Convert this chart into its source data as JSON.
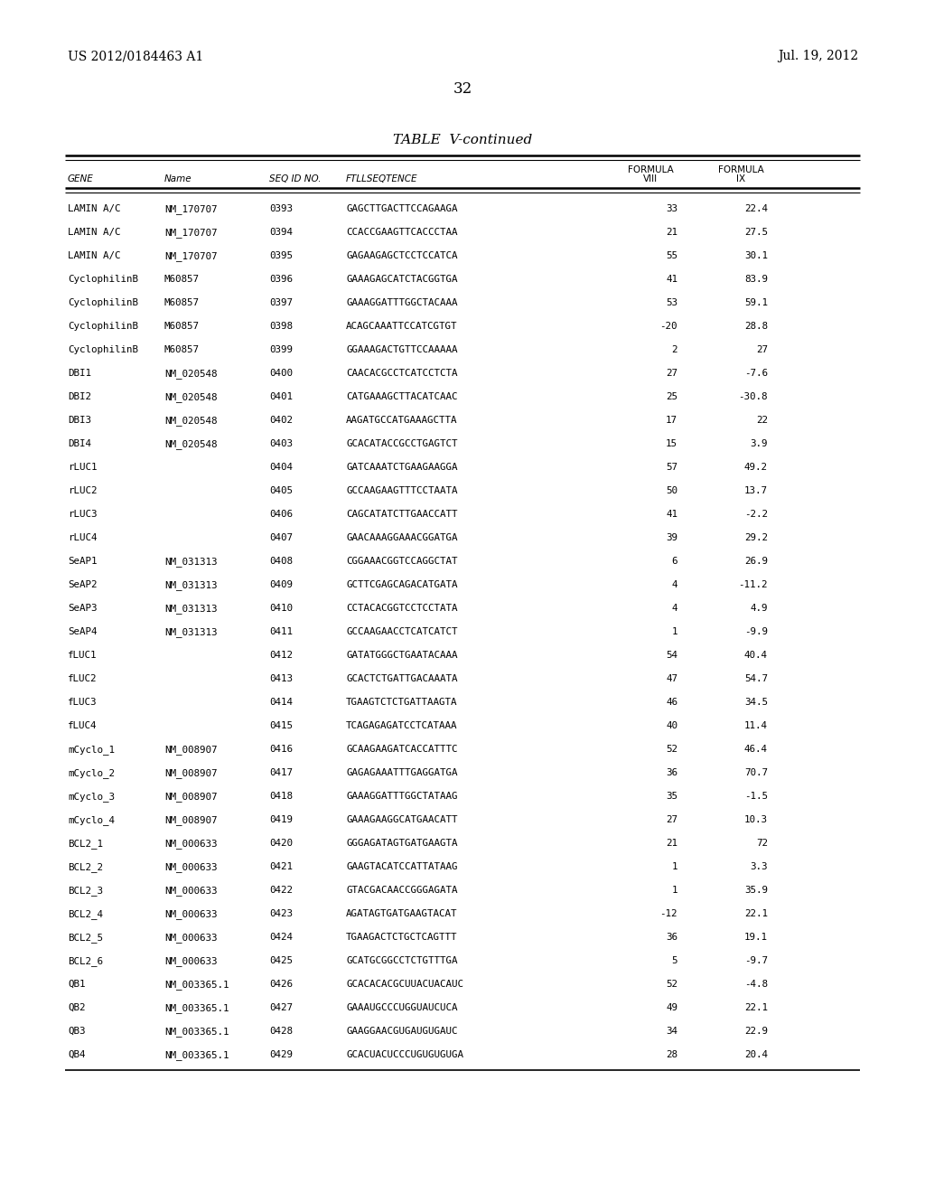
{
  "header_left": "US 2012/0184463 A1",
  "header_right": "Jul. 19, 2012",
  "page_number": "32",
  "table_title": "TABLE  V-continued",
  "rows": [
    [
      "LAMIN A/C",
      "NM_170707",
      "0393",
      "GAGCTTGACTTCCAGAAGA",
      "33",
      "22.4"
    ],
    [
      "LAMIN A/C",
      "NM_170707",
      "0394",
      "CCACCGAAGTTCACCCTAA",
      "21",
      "27.5"
    ],
    [
      "LAMIN A/C",
      "NM_170707",
      "0395",
      "GAGAAGAGCTCCTCCATCA",
      "55",
      "30.1"
    ],
    [
      "CyclophilinB",
      "M60857",
      "0396",
      "GAAAGAGCATCTACGGTGA",
      "41",
      "83.9"
    ],
    [
      "CyclophilinB",
      "M60857",
      "0397",
      "GAAAGGATTTGGCTACAAA",
      "53",
      "59.1"
    ],
    [
      "CyclophilinB",
      "M60857",
      "0398",
      "ACAGCAAATTCCATCGTGT",
      "-20",
      "28.8"
    ],
    [
      "CyclophilinB",
      "M60857",
      "0399",
      "GGAAAGACTGTTCCAAAAA",
      "2",
      "27"
    ],
    [
      "DBI1",
      "NM_020548",
      "0400",
      "CAACACGCCTCATCCTCTA",
      "27",
      "-7.6"
    ],
    [
      "DBI2",
      "NM_020548",
      "0401",
      "CATGAAAGCTTACATCAAC",
      "25",
      "-30.8"
    ],
    [
      "DBI3",
      "NM_020548",
      "0402",
      "AAGATGCCATGAAAGCTTA",
      "17",
      "22"
    ],
    [
      "DBI4",
      "NM_020548",
      "0403",
      "GCACATACCGCCTGAGTCT",
      "15",
      "3.9"
    ],
    [
      "rLUC1",
      "",
      "0404",
      "GATCAAATCTGAAGAAGGA",
      "57",
      "49.2"
    ],
    [
      "rLUC2",
      "",
      "0405",
      "GCCAAGAAGTTTCCTAATA",
      "50",
      "13.7"
    ],
    [
      "rLUC3",
      "",
      "0406",
      "CAGCATATCTTGAACCATT",
      "41",
      "-2.2"
    ],
    [
      "rLUC4",
      "",
      "0407",
      "GAACAAAGGAAACGGATGA",
      "39",
      "29.2"
    ],
    [
      "SeAP1",
      "NM_031313",
      "0408",
      "CGGAAACGGTCCAGGCTAT",
      "6",
      "26.9"
    ],
    [
      "SeAP2",
      "NM_031313",
      "0409",
      "GCTTCGAGCAGACATGATA",
      "4",
      "-11.2"
    ],
    [
      "SeAP3",
      "NM_031313",
      "0410",
      "CCTACACGGTCCTCCTATA",
      "4",
      "4.9"
    ],
    [
      "SeAP4",
      "NM_031313",
      "0411",
      "GCCAAGAACCTCATCATCT",
      "1",
      "-9.9"
    ],
    [
      "fLUC1",
      "",
      "0412",
      "GATATGGGCTGAATACAAA",
      "54",
      "40.4"
    ],
    [
      "fLUC2",
      "",
      "0413",
      "GCACTCTGATTGACAAATA",
      "47",
      "54.7"
    ],
    [
      "fLUC3",
      "",
      "0414",
      "TGAAGTCTCTGATTAAGTA",
      "46",
      "34.5"
    ],
    [
      "fLUC4",
      "",
      "0415",
      "TCAGAGAGATCCTCATAAA",
      "40",
      "11.4"
    ],
    [
      "mCyclo_1",
      "NM_008907",
      "0416",
      "GCAAGAAGATCACCATTTC",
      "52",
      "46.4"
    ],
    [
      "mCyclo_2",
      "NM_008907",
      "0417",
      "GAGAGAAATTTGAGGATGA",
      "36",
      "70.7"
    ],
    [
      "mCyclo_3",
      "NM_008907",
      "0418",
      "GAAAGGATTTGGCTATAAG",
      "35",
      "-1.5"
    ],
    [
      "mCyclo_4",
      "NM_008907",
      "0419",
      "GAAAGAAGGCATGAACATT",
      "27",
      "10.3"
    ],
    [
      "BCL2_1",
      "NM_000633",
      "0420",
      "GGGAGATAGTGATGAAGTA",
      "21",
      "72"
    ],
    [
      "BCL2_2",
      "NM_000633",
      "0421",
      "GAAGTACATCCATTATAAG",
      "1",
      "3.3"
    ],
    [
      "BCL2_3",
      "NM_000633",
      "0422",
      "GTACGACAACCGGGAGATA",
      "1",
      "35.9"
    ],
    [
      "BCL2_4",
      "NM_000633",
      "0423",
      "AGATAGTGATGAAGTACAT",
      "-12",
      "22.1"
    ],
    [
      "BCL2_5",
      "NM_000633",
      "0424",
      "TGAAGACTCTGCTCAGTTT",
      "36",
      "19.1"
    ],
    [
      "BCL2_6",
      "NM_000633",
      "0425",
      "GCATGCGGCCTCTGTTTGA",
      "5",
      "-9.7"
    ],
    [
      "QB1",
      "NM_003365.1",
      "0426",
      "GCACACACGCUUACUACAUC",
      "52",
      "-4.8"
    ],
    [
      "QB2",
      "NM_003365.1",
      "0427",
      "GAAAUGCCCUGGUAUCUCA",
      "49",
      "22.1"
    ],
    [
      "QB3",
      "NM_003365.1",
      "0428",
      "GAAGGAACGUGAUGUGAUC",
      "34",
      "22.9"
    ],
    [
      "QB4",
      "NM_003365.1",
      "0429",
      "GCACUACUCCCUGUGUGUGА",
      "28",
      "20.4"
    ]
  ],
  "background_color": "#ffffff",
  "text_color": "#000000"
}
